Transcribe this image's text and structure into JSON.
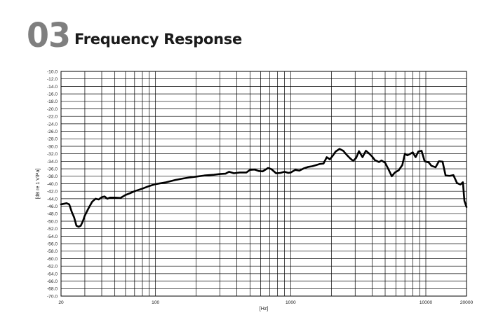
{
  "header": {
    "number": "03",
    "title": "Frequency Response"
  },
  "chart_data": {
    "type": "line",
    "x_scale": "log",
    "grid": true,
    "xlim": [
      20,
      20000
    ],
    "ylim": [
      -70.0,
      -10.0
    ],
    "xlabel": "[Hz]",
    "ylabel": "[dB re 1 V/Pa]",
    "x_tick_labels": [
      {
        "x": 20,
        "label": "20"
      },
      {
        "x": 100,
        "label": "100"
      },
      {
        "x": 1000,
        "label": "1000"
      },
      {
        "x": 10000,
        "label": "10000"
      },
      {
        "x": 20000,
        "label": "20000"
      }
    ],
    "y_ticks": [
      -10.0,
      -12.0,
      -14.0,
      -16.0,
      -18.0,
      -20.0,
      -22.0,
      -24.0,
      -26.0,
      -28.0,
      -30.0,
      -32.0,
      -34.0,
      -36.0,
      -38.0,
      -40.0,
      -42.0,
      -44.0,
      -46.0,
      -48.0,
      -50.0,
      -52.0,
      -54.0,
      -56.0,
      -58.0,
      -60.0,
      -62.0,
      -64.0,
      -66.0,
      -68.0,
      -70.0
    ],
    "y_tick_labels": [
      "-10.0",
      "-12.0",
      "-14.0",
      "-16.0",
      "-18.0",
      "-20.0",
      "-22.0",
      "-24.0",
      "-26.0",
      "-28.0",
      "-30.0",
      "-32.0",
      "-34.0",
      "-36.0",
      "-38.0",
      "-40.0",
      "-42.0",
      "-44.0",
      "-46.0",
      "-48.0",
      "-50.0",
      "-52.0",
      "-54.0",
      "-56.0",
      "-58.0",
      "-60.0",
      "-62.0",
      "-64.0",
      "-66.0",
      "-68.0",
      "-70.0"
    ],
    "series": [
      {
        "color": "#000000",
        "points": [
          [
            20,
            -45.5
          ],
          [
            22,
            -45.2
          ],
          [
            23,
            -45.5
          ],
          [
            24,
            -47.5
          ],
          [
            25,
            -49.0
          ],
          [
            26,
            -51.2
          ],
          [
            27,
            -51.5
          ],
          [
            28,
            -51.2
          ],
          [
            29,
            -50.0
          ],
          [
            30,
            -48.5
          ],
          [
            32,
            -46.5
          ],
          [
            34,
            -44.8
          ],
          [
            36,
            -44.0
          ],
          [
            38,
            -44.2
          ],
          [
            40,
            -43.6
          ],
          [
            42,
            -43.4
          ],
          [
            44,
            -44.0
          ],
          [
            46,
            -43.7
          ],
          [
            50,
            -43.7
          ],
          [
            55,
            -43.8
          ],
          [
            60,
            -43.0
          ],
          [
            65,
            -42.5
          ],
          [
            70,
            -42.0
          ],
          [
            80,
            -41.3
          ],
          [
            90,
            -40.6
          ],
          [
            100,
            -40.1
          ],
          [
            120,
            -39.6
          ],
          [
            140,
            -39.0
          ],
          [
            160,
            -38.6
          ],
          [
            180,
            -38.3
          ],
          [
            200,
            -38.1
          ],
          [
            230,
            -37.8
          ],
          [
            270,
            -37.6
          ],
          [
            300,
            -37.4
          ],
          [
            330,
            -37.3
          ],
          [
            350,
            -36.8
          ],
          [
            380,
            -37.2
          ],
          [
            420,
            -37.0
          ],
          [
            470,
            -37.0
          ],
          [
            500,
            -36.3
          ],
          [
            540,
            -36.2
          ],
          [
            580,
            -36.6
          ],
          [
            620,
            -36.7
          ],
          [
            680,
            -35.8
          ],
          [
            720,
            -36.1
          ],
          [
            780,
            -37.2
          ],
          [
            840,
            -37.1
          ],
          [
            900,
            -36.8
          ],
          [
            960,
            -37.1
          ],
          [
            1000,
            -37.0
          ],
          [
            1080,
            -36.3
          ],
          [
            1160,
            -36.5
          ],
          [
            1250,
            -35.9
          ],
          [
            1350,
            -35.5
          ],
          [
            1450,
            -35.3
          ],
          [
            1550,
            -35.0
          ],
          [
            1650,
            -34.7
          ],
          [
            1750,
            -34.6
          ],
          [
            1850,
            -32.9
          ],
          [
            1950,
            -33.5
          ],
          [
            2050,
            -32.5
          ],
          [
            2150,
            -31.4
          ],
          [
            2300,
            -30.7
          ],
          [
            2450,
            -31.2
          ],
          [
            2600,
            -32.3
          ],
          [
            2750,
            -33.2
          ],
          [
            2900,
            -33.9
          ],
          [
            3050,
            -33.1
          ],
          [
            3200,
            -31.3
          ],
          [
            3400,
            -32.9
          ],
          [
            3600,
            -31.2
          ],
          [
            3800,
            -31.9
          ],
          [
            4000,
            -32.7
          ],
          [
            4200,
            -33.7
          ],
          [
            4500,
            -34.2
          ],
          [
            4700,
            -33.8
          ],
          [
            5000,
            -34.4
          ],
          [
            5300,
            -36.2
          ],
          [
            5600,
            -38.0
          ],
          [
            5900,
            -37.0
          ],
          [
            6300,
            -36.4
          ],
          [
            6700,
            -35.0
          ],
          [
            7000,
            -32.0
          ],
          [
            7300,
            -32.4
          ],
          [
            7600,
            -32.1
          ],
          [
            8000,
            -31.6
          ],
          [
            8400,
            -32.9
          ],
          [
            8800,
            -31.4
          ],
          [
            9300,
            -31.2
          ],
          [
            9800,
            -34.0
          ],
          [
            10500,
            -34.3
          ],
          [
            11000,
            -35.2
          ],
          [
            11800,
            -35.6
          ],
          [
            12500,
            -34.0
          ],
          [
            13300,
            -34.1
          ],
          [
            14000,
            -37.8
          ],
          [
            15000,
            -37.9
          ],
          [
            16000,
            -37.7
          ],
          [
            17000,
            -39.8
          ],
          [
            18000,
            -40.2
          ],
          [
            18800,
            -39.6
          ],
          [
            19300,
            -44.6
          ],
          [
            20000,
            -46.2
          ]
        ]
      }
    ]
  }
}
